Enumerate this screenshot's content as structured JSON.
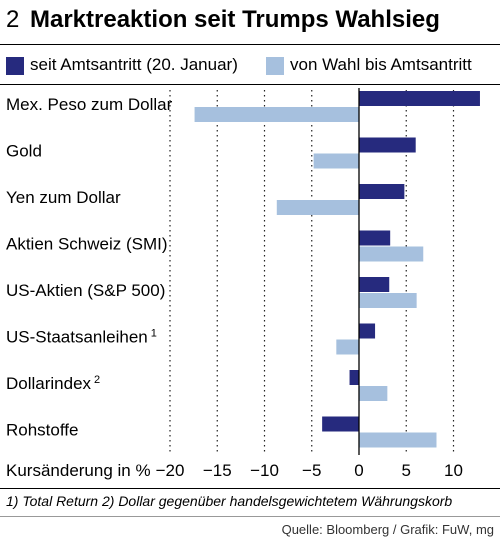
{
  "header": {
    "number": "2",
    "title": "Marktreaktion seit Trumps Wahlsieg"
  },
  "chart_data": {
    "type": "bar",
    "orientation": "horizontal",
    "categories": [
      "Mex. Peso zum Dollar",
      "Gold",
      "Yen zum Dollar",
      "Aktien Schweiz (SMI)",
      "US-Aktien (S&P 500)",
      "US-Staatsanleihen",
      "Dollarindex",
      "Rohstoffe"
    ],
    "category_notes": [
      "",
      "",
      "",
      "",
      "",
      "1",
      "2",
      ""
    ],
    "series": [
      {
        "name": "seit Amtsantritt (20. Januar)",
        "color": "#262a7e",
        "values": [
          12.8,
          6.0,
          4.8,
          3.3,
          3.2,
          1.7,
          -1.0,
          -3.9
        ]
      },
      {
        "name": "von Wahl bis Amtsantritt",
        "color": "#a6c0de",
        "values": [
          -17.4,
          -4.8,
          -8.7,
          6.8,
          6.1,
          -2.4,
          3.0,
          8.2
        ]
      }
    ],
    "xlabel": "Kursänderung in %",
    "xlim": [
      -20,
      13
    ],
    "ticks": [
      -20,
      -15,
      -10,
      -5,
      0,
      5,
      10
    ],
    "tick_labels": [
      "−20",
      "−15",
      "−10",
      "−5",
      "0",
      "5",
      "10"
    ],
    "grid": "dotted vertical",
    "legend": "top"
  },
  "footnotes": "1) Total Return     2) Dollar gegenüber handelsgewichtetem Währungskorb",
  "source": "Quelle: Bloomberg / Grafik: FuW, mg"
}
